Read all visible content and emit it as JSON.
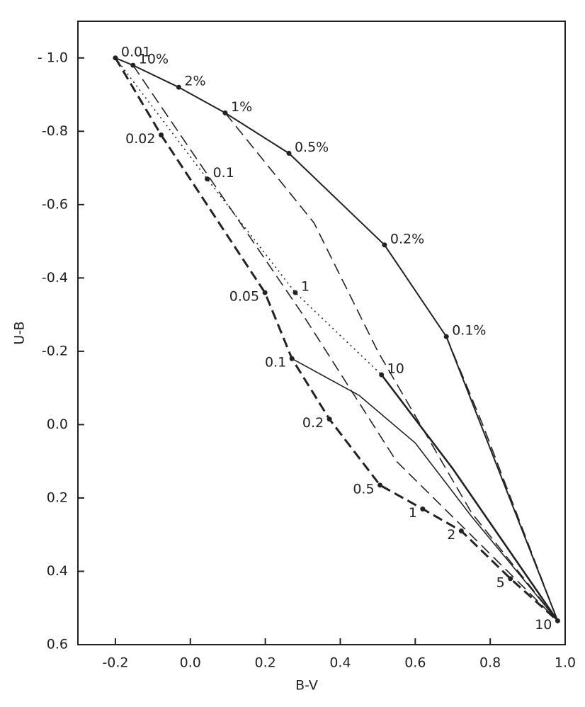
{
  "chart_data": {
    "type": "line",
    "xlabel": "B-V",
    "ylabel": "U-B",
    "xlim": [
      -0.3,
      1.0
    ],
    "ylim": [
      0.6,
      -1.1
    ],
    "xticks": [
      -0.2,
      {
        "value": 0,
        "label": "0.0"
      },
      0.2,
      0.4,
      0.6,
      0.8,
      {
        "value": 1,
        "label": "1.0"
      }
    ],
    "yticks": [
      {
        "value": -1,
        "label": "- 1.0"
      },
      -0.8,
      -0.6,
      -0.4,
      -0.2,
      {
        "value": 0,
        "label": "0.0"
      },
      0.2,
      0.4,
      0.6
    ],
    "series": [
      {
        "color": "#222",
        "dash": "solid",
        "width": 2,
        "label_side": "right",
        "x": [
          -0.2,
          -0.153,
          -0.031,
          0.093,
          0.263,
          0.518,
          0.683,
          0.98
        ],
        "values": [
          -1.0,
          -0.98,
          -0.92,
          -0.85,
          -0.74,
          -0.49,
          -0.24,
          0.535
        ],
        "point_labels": [
          "0.01",
          "10%",
          "2%",
          "1%",
          "0.5%",
          "0.2%",
          "0.1%",
          null
        ]
      },
      {
        "color": "#222",
        "dash": "heavy",
        "width": 3,
        "label_side": "left",
        "x": [
          -0.2,
          -0.078,
          0.199,
          0.271,
          0.371,
          0.506,
          0.62,
          0.723,
          0.854,
          0.98
        ],
        "values": [
          -1.0,
          -0.79,
          -0.36,
          -0.18,
          -0.015,
          0.165,
          0.23,
          0.29,
          0.42,
          0.535
        ],
        "point_labels": [
          null,
          "0.02",
          "0.05",
          "0.1",
          "0.2",
          "0.5",
          "1",
          "2",
          "5",
          "10"
        ]
      },
      {
        "color": "#222",
        "dash": "solid",
        "width": 1.6,
        "label_side": "right",
        "x": [
          0.271,
          0.45,
          0.6,
          0.75,
          0.98
        ],
        "values": [
          -0.18,
          -0.08,
          0.05,
          0.25,
          0.535
        ]
      },
      {
        "color": "#222",
        "dash": "dotted",
        "width": 1.6,
        "label_side": "right",
        "x": [
          -0.2,
          0.045,
          0.28,
          0.51
        ],
        "values": [
          -1.0,
          -0.67,
          -0.36,
          -0.136
        ],
        "point_labels": [
          null,
          "0.1",
          "1",
          "10"
        ]
      },
      {
        "color": "#222",
        "dash": "solid",
        "width": 2.6,
        "label_side": "right",
        "x": [
          0.51,
          0.7,
          0.98
        ],
        "values": [
          -0.136,
          0.12,
          0.535
        ]
      },
      {
        "color": "#222",
        "dash": "dashed",
        "width": 1.6,
        "label_side": "right",
        "x": [
          0.093,
          0.33,
          0.5,
          0.75,
          0.98
        ],
        "values": [
          -0.85,
          -0.55,
          -0.2,
          0.24,
          0.535
        ]
      },
      {
        "color": "#222",
        "dash": "dashed",
        "width": 1.6,
        "label_side": "right",
        "x": [
          0.683,
          0.78,
          0.98
        ],
        "values": [
          -0.24,
          0.0,
          0.535
        ]
      },
      {
        "color": "#222",
        "dash": "dashed",
        "width": 1.6,
        "label_side": "right",
        "x": [
          -0.153,
          0.1,
          0.3,
          0.55,
          0.98
        ],
        "values": [
          -0.98,
          -0.6,
          -0.3,
          0.1,
          0.535
        ]
      }
    ]
  }
}
